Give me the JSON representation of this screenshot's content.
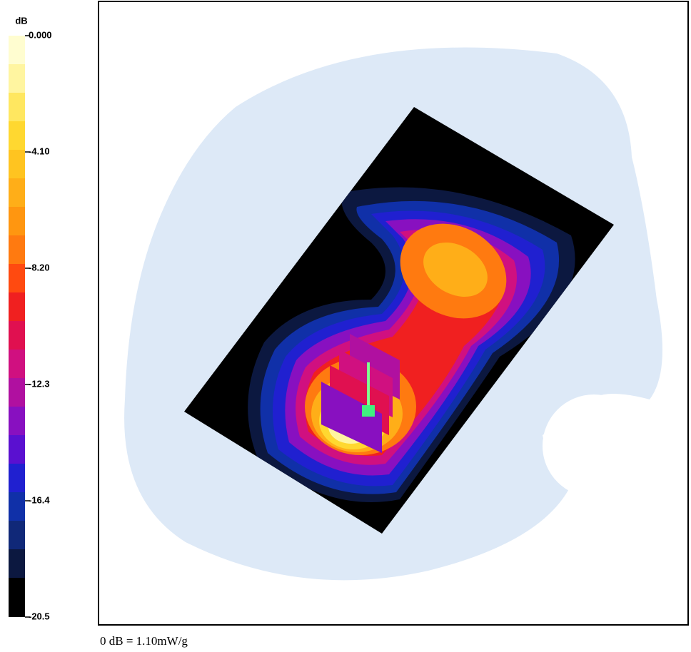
{
  "colorbar": {
    "unit": "dB",
    "ticks": [
      {
        "value": 0,
        "label": "0.000"
      },
      {
        "value": -4.1,
        "label": "-4.10"
      },
      {
        "value": -8.2,
        "label": "-8.20"
      },
      -12.3,
      -16.4,
      -20.5
    ],
    "range": [
      0,
      -20.5
    ]
  },
  "footer": "0 dB = 1.10mW/g"
}
